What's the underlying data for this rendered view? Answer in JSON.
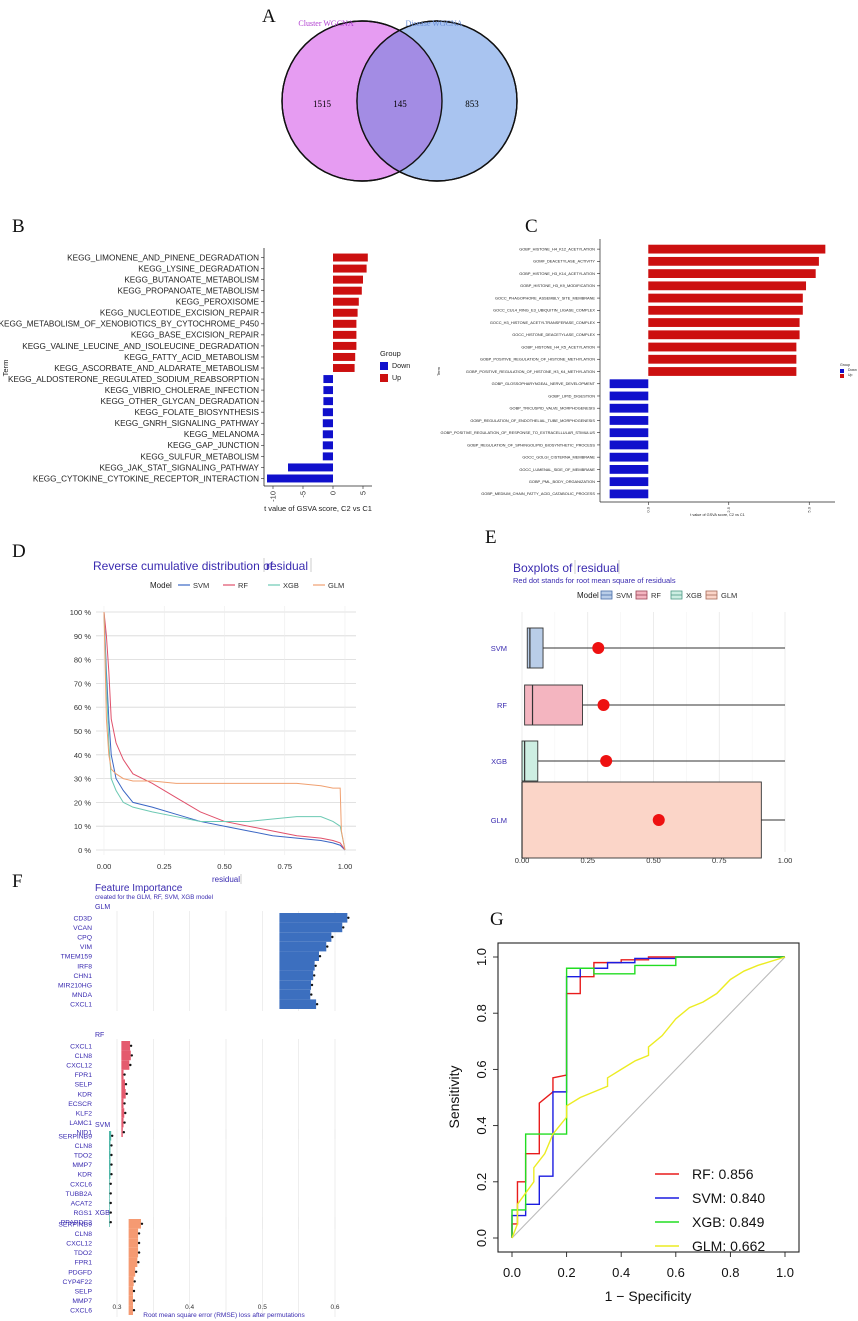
{
  "panels": [
    "A",
    "B",
    "C",
    "D",
    "E",
    "F",
    "G"
  ],
  "colors": {
    "down": "#1010cc",
    "up": "#cc1010",
    "venn_left": "#e69cf2",
    "venn_right": "#a9c4f0",
    "venn_mid": "#a38ce4",
    "venn_left_label": "#b03fd0",
    "venn_right_label": "#6b8fd6",
    "purple": "#3a2bb0"
  },
  "chart_data": [
    {
      "panel": "A",
      "type": "venn",
      "sets": [
        "Cluster WGCNA",
        "Disease WGCNA"
      ],
      "values": {
        "left_only": 1515,
        "intersection": 145,
        "right_only": 853
      }
    },
    {
      "panel": "B",
      "type": "bar",
      "orientation": "horizontal",
      "ylabel": "Term",
      "xlabel": "t value of GSVA score, C2 vs C1",
      "xticks": [
        "-10",
        "-5",
        "0",
        "5"
      ],
      "xlim": [
        -11.5,
        6.5
      ],
      "legend": {
        "title": "Group",
        "items": [
          "Down",
          "Up"
        ]
      },
      "categories": [
        "KEGG_LIMONENE_AND_PINENE_DEGRADATION",
        "KEGG_LYSINE_DEGRADATION",
        "KEGG_BUTANOATE_METABOLISM",
        "KEGG_PROPANOATE_METABOLISM",
        "KEGG_PEROXISOME",
        "KEGG_NUCLEOTIDE_EXCISION_REPAIR",
        "KEGG_METABOLISM_OF_XENOBIOTICS_BY_CYTOCHROME_P450",
        "KEGG_BASE_EXCISION_REPAIR",
        "KEGG_VALINE_LEUCINE_AND_ISOLEUCINE_DEGRADATION",
        "KEGG_FATTY_ACID_METABOLISM",
        "KEGG_ASCORBATE_AND_ALDARATE_METABOLISM",
        "KEGG_ALDOSTERONE_REGULATED_SODIUM_REABSORPTION",
        "KEGG_VIBRIO_CHOLERAE_INFECTION",
        "KEGG_OTHER_GLYCAN_DEGRADATION",
        "KEGG_FOLATE_BIOSYNTHESIS",
        "KEGG_GNRH_SIGNALING_PATHWAY",
        "KEGG_MELANOMA",
        "KEGG_GAP_JUNCTION",
        "KEGG_SULFUR_METABOLISM",
        "KEGG_JAK_STAT_SIGNALING_PATHWAY",
        "KEGG_CYTOKINE_CYTOKINE_RECEPTOR_INTERACTION"
      ],
      "values": [
        5.8,
        5.6,
        5.0,
        4.8,
        4.3,
        4.1,
        3.9,
        3.9,
        3.9,
        3.7,
        3.6,
        -1.6,
        -1.6,
        -1.6,
        -1.7,
        -1.7,
        -1.7,
        -1.7,
        -1.7,
        -7.5,
        -11.0
      ]
    },
    {
      "panel": "C",
      "type": "bar",
      "orientation": "horizontal",
      "ylabel": "Term",
      "xlabel": "t value of GSVA score, C2 vs C1",
      "xticks": [
        "0.0",
        "2.5",
        "5.0"
      ],
      "xlim": [
        -1.5,
        5.8
      ],
      "legend": {
        "title": "Group",
        "items": [
          "Down",
          "Up"
        ]
      },
      "categories": [
        "GOBP_HISTONE_H4_K12_ACETYLATION",
        "GOMF_DEACETYLASE_ACTIVITY",
        "GOBP_HISTONE_H3_K14_ACETYLATION",
        "GOBP_HISTONE_H3_K9_MODIFICATION",
        "GOCC_PHAGOPHORE_ASSEMBLY_SITE_MEMBRANE",
        "GOCC_CUL4_RING_E3_UBIQUITIN_LIGASE_COMPLEX",
        "GOCC_H3_HISTONE_ACETYLTRANSFERASE_COMPLEX",
        "GOCC_HISTONE_DEACETYLASE_COMPLEX",
        "GOBP_HISTONE_H4_K5_ACETYLATION",
        "GOBP_POSITIVE_REGULATION_OF_HISTONE_METHYLATION",
        "GOBP_POSITIVE_REGULATION_OF_HISTONE_H3_K4_METHYLATION",
        "GOBP_GLOSSOPHARYNGEAL_NERVE_DEVELOPMENT",
        "GOBP_LIPID_DIGESTION",
        "GOBP_TRICUSPID_VALVE_MORPHOGENESIS",
        "GOBP_REGULATION_OF_ENDOTHELIAL_TUBE_MORPHOGENESIS",
        "GOBP_POSITIVE_REGULATION_OF_RESPONSE_TO_EXTRACELLULAR_STIMULUS",
        "GOBP_REGULATION_OF_SPHINGOLIPID_BIOSYNTHETIC_PROCESS",
        "GOCC_GOLGI_CISTERNA_MEMBRANE",
        "GOCC_LUMENAL_SIDE_OF_MEMBRANE",
        "GOBP_PML_BODY_ORGANIZATION",
        "GOBP_MEDIUM_CHAIN_FATTY_ACID_CATABOLIC_PROCESS"
      ],
      "values": [
        5.5,
        5.3,
        5.2,
        4.9,
        4.8,
        4.8,
        4.7,
        4.7,
        4.6,
        4.6,
        4.6,
        -1.2,
        -1.2,
        -1.2,
        -1.2,
        -1.2,
        -1.2,
        -1.2,
        -1.2,
        -1.2,
        -1.2
      ]
    },
    {
      "panel": "D",
      "type": "line",
      "title": "Reverse cumulative distribution of",
      "title_var": "residual",
      "xlabel": "residual",
      "legend_title": "Model",
      "xticks": [
        "0.00",
        "0.25",
        "0.50",
        "0.75",
        "1.00"
      ],
      "yticks": [
        "0 %",
        "10 %",
        "20 %",
        "30 %",
        "40 %",
        "50 %",
        "60 %",
        "70 %",
        "80 %",
        "90 %",
        "100 %"
      ],
      "xlim": [
        0,
        1
      ],
      "ylim": [
        0,
        1
      ],
      "series": [
        {
          "name": "SVM",
          "color": "#3a66c4",
          "x": [
            0,
            0.01,
            0.02,
            0.03,
            0.05,
            0.08,
            0.12,
            0.2,
            0.3,
            0.4,
            0.5,
            0.6,
            0.7,
            0.8,
            0.9,
            0.95,
            0.98,
            1.0
          ],
          "y": [
            1,
            0.75,
            0.55,
            0.4,
            0.3,
            0.25,
            0.2,
            0.18,
            0.15,
            0.12,
            0.1,
            0.08,
            0.06,
            0.05,
            0.04,
            0.03,
            0.02,
            0
          ]
        },
        {
          "name": "RF",
          "color": "#e0506a",
          "x": [
            0,
            0.01,
            0.02,
            0.03,
            0.05,
            0.08,
            0.12,
            0.2,
            0.3,
            0.4,
            0.5,
            0.6,
            0.7,
            0.8,
            0.9,
            0.95,
            0.98,
            1.0
          ],
          "y": [
            1,
            0.9,
            0.75,
            0.55,
            0.45,
            0.38,
            0.32,
            0.28,
            0.22,
            0.16,
            0.12,
            0.1,
            0.08,
            0.06,
            0.05,
            0.04,
            0.03,
            0
          ]
        },
        {
          "name": "XGB",
          "color": "#6cc9b3",
          "x": [
            0,
            0.01,
            0.02,
            0.03,
            0.05,
            0.08,
            0.12,
            0.2,
            0.3,
            0.4,
            0.5,
            0.6,
            0.7,
            0.8,
            0.9,
            0.95,
            0.98,
            1.0
          ],
          "y": [
            1,
            0.7,
            0.45,
            0.3,
            0.25,
            0.2,
            0.18,
            0.16,
            0.14,
            0.12,
            0.12,
            0.12,
            0.13,
            0.14,
            0.14,
            0.12,
            0.1,
            0
          ]
        },
        {
          "name": "GLM",
          "color": "#f0a070",
          "x": [
            0,
            0.01,
            0.02,
            0.03,
            0.05,
            0.08,
            0.12,
            0.2,
            0.3,
            0.4,
            0.5,
            0.6,
            0.7,
            0.8,
            0.9,
            0.95,
            0.98,
            0.985,
            1.0
          ],
          "y": [
            1,
            0.55,
            0.4,
            0.34,
            0.32,
            0.3,
            0.29,
            0.29,
            0.28,
            0.28,
            0.28,
            0.28,
            0.28,
            0.28,
            0.27,
            0.26,
            0.26,
            0.08,
            0
          ]
        }
      ]
    },
    {
      "panel": "E",
      "type": "boxplot",
      "title": "Boxplots of",
      "title_var": "residual",
      "subtitle": "Red dot stands for root mean square of residuals",
      "legend_title": "Model",
      "xticks": [
        "0.00",
        "0.25",
        "0.50",
        "0.75",
        "1.00"
      ],
      "xlim": [
        0,
        1
      ],
      "categories": [
        "SVM",
        "RF",
        "XGB",
        "GLM"
      ],
      "boxes": [
        {
          "name": "SVM",
          "q1": 0.02,
          "median": 0.03,
          "q3": 0.08,
          "max": 1.0,
          "rmse": 0.29,
          "color": "#b9cde8",
          "edge": "#4a6fa8"
        },
        {
          "name": "RF",
          "q1": 0.01,
          "median": 0.04,
          "q3": 0.23,
          "max": 1.0,
          "rmse": 0.31,
          "color": "#f4b5c0",
          "edge": "#9b4455"
        },
        {
          "name": "XGB",
          "q1": 0.0,
          "median": 0.01,
          "q3": 0.06,
          "max": 1.0,
          "rmse": 0.32,
          "color": "#cdeee2",
          "edge": "#4f9a86"
        },
        {
          "name": "GLM",
          "q1": 0.0,
          "median": 0.0,
          "q3": 0.91,
          "max": 1.0,
          "rmse": 0.52,
          "color": "#fbd5c8",
          "edge": "#a66a58"
        }
      ]
    },
    {
      "panel": "F",
      "type": "bar",
      "orientation": "horizontal",
      "title": "Feature Importance",
      "subtitle": "created for the GLM, RF, SVM, XGB model",
      "xlabel": "Root mean square error (RMSE) loss after permutations",
      "xticks": [
        "0.3",
        "0.4",
        "0.5",
        "0.6"
      ],
      "xlim": [
        0.3,
        0.62
      ],
      "groups": [
        {
          "name": "GLM",
          "color": "#3c6fbf",
          "baseline": 0.5235,
          "features": [
            "CD3D",
            "VCAN",
            "CPQ",
            "VIM",
            "TMEM159",
            "IRF8",
            "CHN1",
            "MIR210HG",
            "MNDA",
            "CXCL1"
          ],
          "values": [
            0.617,
            0.61,
            0.595,
            0.588,
            0.578,
            0.572,
            0.57,
            0.567,
            0.566,
            0.574
          ]
        },
        {
          "name": "RF",
          "color": "#e45a6e",
          "baseline": 0.306,
          "features": [
            "CXCL1",
            "CLN8",
            "CXCL12",
            "FPR1",
            "SELP",
            "KDR",
            "ECSCR",
            "KLF2",
            "LAMC1",
            "NID1"
          ],
          "values": [
            0.318,
            0.319,
            0.317,
            0.309,
            0.311,
            0.312,
            0.309,
            0.31,
            0.309,
            0.308
          ]
        },
        {
          "name": "SVM",
          "color": "#4fb7a8",
          "baseline": 0.289,
          "features": [
            "SERPINB9",
            "CLN8",
            "TDO2",
            "MMP7",
            "KDR",
            "CXCL6",
            "TUBB2A",
            "ACAT2",
            "RGS1",
            "PPAPDC3"
          ],
          "values": [
            0.292,
            0.291,
            0.291,
            0.291,
            0.291,
            0.29,
            0.29,
            0.29,
            0.29,
            0.29
          ]
        },
        {
          "name": "XGB",
          "color": "#f59a72",
          "baseline": 0.316,
          "features": [
            "SERPINB9",
            "CLN8",
            "CXCL12",
            "TDO2",
            "FPR1",
            "PDGFD",
            "CYP4F22",
            "SELP",
            "MMP7",
            "CXCL6"
          ],
          "values": [
            0.333,
            0.329,
            0.329,
            0.329,
            0.328,
            0.325,
            0.323,
            0.322,
            0.322,
            0.322
          ]
        }
      ]
    },
    {
      "panel": "G",
      "type": "line",
      "xlabel": "1 − Specificity",
      "ylabel": "Sensitivity",
      "xticks": [
        "0.0",
        "0.2",
        "0.4",
        "0.6",
        "0.8",
        "1.0"
      ],
      "yticks": [
        "0.0",
        "0.2",
        "0.4",
        "0.6",
        "0.8",
        "1.0"
      ],
      "xlim": [
        -0.02,
        1.02
      ],
      "ylim": [
        -0.02,
        1.02
      ],
      "series": [
        {
          "name": "RF",
          "auc_label": "RF: 0.856",
          "color": "#e81c1c",
          "x": [
            0,
            0,
            0.02,
            0.02,
            0.05,
            0.05,
            0.1,
            0.1,
            0.15,
            0.15,
            0.2,
            0.2,
            0.25,
            0.25,
            0.3,
            0.3,
            0.4,
            0.4,
            0.5,
            0.5,
            0.6,
            1.0
          ],
          "y": [
            0,
            0.05,
            0.05,
            0.2,
            0.2,
            0.3,
            0.3,
            0.48,
            0.52,
            0.57,
            0.58,
            0.87,
            0.87,
            0.93,
            0.93,
            0.98,
            0.98,
            0.99,
            0.99,
            1.0,
            1.0,
            1.0
          ]
        },
        {
          "name": "SVM",
          "auc_label": "SVM: 0.840",
          "color": "#1c1ce0",
          "x": [
            0,
            0,
            0.05,
            0.05,
            0.1,
            0.1,
            0.15,
            0.15,
            0.2,
            0.2,
            0.25,
            0.25,
            0.35,
            0.35,
            0.45,
            0.45,
            0.6,
            0.6,
            1.0
          ],
          "y": [
            0,
            0.08,
            0.08,
            0.12,
            0.12,
            0.22,
            0.22,
            0.52,
            0.52,
            0.93,
            0.93,
            0.96,
            0.96,
            0.98,
            0.98,
            0.995,
            0.995,
            1.0,
            1.0
          ]
        },
        {
          "name": "XGB",
          "auc_label": "XGB: 0.849",
          "color": "#22dd22",
          "x": [
            0,
            0,
            0.05,
            0.05,
            0.2,
            0.2,
            0.3,
            0.3,
            0.45,
            0.45,
            0.6,
            0.6,
            1.0
          ],
          "y": [
            0,
            0.1,
            0.1,
            0.37,
            0.37,
            0.96,
            0.96,
            0.94,
            0.94,
            0.97,
            0.97,
            1.0,
            1.0
          ]
        },
        {
          "name": "GLM",
          "auc_label": "GLM: 0.662",
          "color": "#ecec22",
          "x": [
            0,
            0.02,
            0.02,
            0.08,
            0.08,
            0.12,
            0.15,
            0.2,
            0.2,
            0.25,
            0.3,
            0.35,
            0.35,
            0.4,
            0.45,
            0.5,
            0.5,
            0.55,
            0.6,
            0.65,
            0.7,
            0.75,
            0.8,
            0.85,
            0.9,
            1.0
          ],
          "y": [
            0,
            0.05,
            0.12,
            0.2,
            0.25,
            0.3,
            0.37,
            0.43,
            0.47,
            0.5,
            0.52,
            0.54,
            0.57,
            0.6,
            0.63,
            0.65,
            0.68,
            0.72,
            0.78,
            0.82,
            0.84,
            0.87,
            0.92,
            0.95,
            0.97,
            1.0
          ]
        }
      ]
    }
  ]
}
